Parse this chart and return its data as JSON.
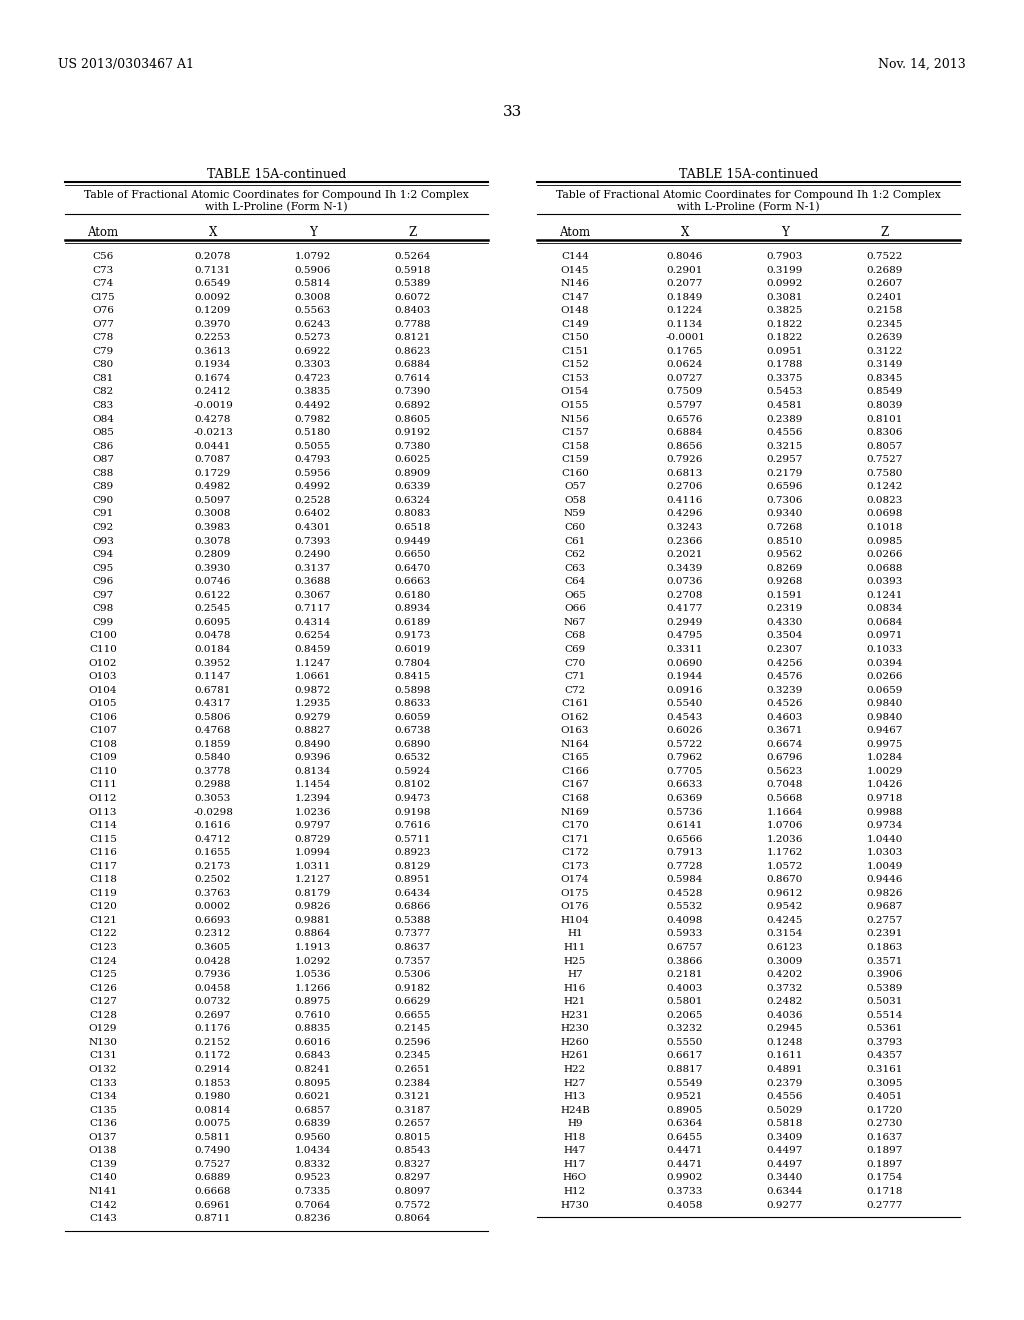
{
  "page_number": "33",
  "patent_left": "US 2013/0303467 A1",
  "patent_right": "Nov. 14, 2013",
  "table_title": "TABLE 15A-continued",
  "table_subtitle_line1": "Table of Fractional Atomic Coordinates for Compound Ih 1:2 Complex",
  "table_subtitle_line2": "with L-Proline (Form N-1)",
  "col_headers": [
    "Atom",
    "X",
    "Y",
    "Z"
  ],
  "left_data": [
    [
      "C56",
      "0.2078",
      "1.0792",
      "0.5264"
    ],
    [
      "C73",
      "0.7131",
      "0.5906",
      "0.5918"
    ],
    [
      "C74",
      "0.6549",
      "0.5814",
      "0.5389"
    ],
    [
      "Cl75",
      "0.0092",
      "0.3008",
      "0.6072"
    ],
    [
      "O76",
      "0.1209",
      "0.5563",
      "0.8403"
    ],
    [
      "O77",
      "0.3970",
      "0.6243",
      "0.7788"
    ],
    [
      "C78",
      "0.2253",
      "0.5273",
      "0.8121"
    ],
    [
      "C79",
      "0.3613",
      "0.6922",
      "0.8623"
    ],
    [
      "C80",
      "0.1934",
      "0.3303",
      "0.6884"
    ],
    [
      "C81",
      "0.1674",
      "0.4723",
      "0.7614"
    ],
    [
      "C82",
      "0.2412",
      "0.3835",
      "0.7390"
    ],
    [
      "C83",
      "-0.0019",
      "0.4492",
      "0.6892"
    ],
    [
      "O84",
      "0.4278",
      "0.7982",
      "0.8605"
    ],
    [
      "O85",
      "-0.0213",
      "0.5180",
      "0.9192"
    ],
    [
      "C86",
      "0.0441",
      "0.5055",
      "0.7380"
    ],
    [
      "O87",
      "0.7087",
      "0.4793",
      "0.6025"
    ],
    [
      "C88",
      "0.1729",
      "0.5956",
      "0.8909"
    ],
    [
      "C89",
      "0.4982",
      "0.4992",
      "0.6339"
    ],
    [
      "C90",
      "0.5097",
      "0.2528",
      "0.6324"
    ],
    [
      "C91",
      "0.3008",
      "0.6402",
      "0.8083"
    ],
    [
      "C92",
      "0.3983",
      "0.4301",
      "0.6518"
    ],
    [
      "O93",
      "0.3078",
      "0.7393",
      "0.9449"
    ],
    [
      "C94",
      "0.2809",
      "0.2490",
      "0.6650"
    ],
    [
      "C95",
      "0.3930",
      "0.3137",
      "0.6470"
    ],
    [
      "C96",
      "0.0746",
      "0.3688",
      "0.6663"
    ],
    [
      "C97",
      "0.6122",
      "0.3067",
      "0.6180"
    ],
    [
      "C98",
      "0.2545",
      "0.7117",
      "0.8934"
    ],
    [
      "C99",
      "0.6095",
      "0.4314",
      "0.6189"
    ],
    [
      "C100",
      "0.0478",
      "0.6254",
      "0.9173"
    ],
    [
      "C110",
      "0.0184",
      "0.8459",
      "0.6019"
    ],
    [
      "O102",
      "0.3952",
      "1.1247",
      "0.7804"
    ],
    [
      "O103",
      "0.1147",
      "1.0661",
      "0.8415"
    ],
    [
      "O104",
      "0.6781",
      "0.9872",
      "0.5898"
    ],
    [
      "O105",
      "0.4317",
      "1.2935",
      "0.8633"
    ],
    [
      "C106",
      "0.5806",
      "0.9279",
      "0.6059"
    ],
    [
      "C107",
      "0.4768",
      "0.8827",
      "0.6738"
    ],
    [
      "C108",
      "0.1859",
      "0.8490",
      "0.6890"
    ],
    [
      "C109",
      "0.5840",
      "0.9396",
      "0.6532"
    ],
    [
      "C110",
      "0.3778",
      "0.8134",
      "0.5924"
    ],
    [
      "C111",
      "0.2988",
      "1.1454",
      "0.8102"
    ],
    [
      "O112",
      "0.3053",
      "1.2394",
      "0.9473"
    ],
    [
      "O113",
      "-0.0298",
      "1.0236",
      "0.9198"
    ],
    [
      "C114",
      "0.1616",
      "0.9797",
      "0.7616"
    ],
    [
      "C115",
      "0.4712",
      "0.8729",
      "0.5711"
    ],
    [
      "C116",
      "0.1655",
      "1.0994",
      "0.8923"
    ],
    [
      "C117",
      "0.2173",
      "1.0311",
      "0.8129"
    ],
    [
      "C118",
      "0.2502",
      "1.2127",
      "0.8951"
    ],
    [
      "C119",
      "0.3763",
      "0.8179",
      "0.6434"
    ],
    [
      "C120",
      "0.0002",
      "0.9826",
      "0.6866"
    ],
    [
      "C121",
      "0.6693",
      "0.9881",
      "0.5388"
    ],
    [
      "C122",
      "0.2312",
      "0.8864",
      "0.7377"
    ],
    [
      "C123",
      "0.3605",
      "1.1913",
      "0.8637"
    ],
    [
      "C124",
      "0.0428",
      "1.0292",
      "0.7357"
    ],
    [
      "C125",
      "0.7936",
      "1.0536",
      "0.5306"
    ],
    [
      "C126",
      "0.0458",
      "1.1266",
      "0.9182"
    ],
    [
      "C127",
      "0.0732",
      "0.8975",
      "0.6629"
    ],
    [
      "C128",
      "0.2697",
      "0.7610",
      "0.6655"
    ],
    [
      "O129",
      "0.1176",
      "0.8835",
      "0.2145"
    ],
    [
      "N130",
      "0.2152",
      "0.6016",
      "0.2596"
    ],
    [
      "C131",
      "0.1172",
      "0.6843",
      "0.2345"
    ],
    [
      "O132",
      "0.2914",
      "0.8241",
      "0.2651"
    ],
    [
      "C133",
      "0.1853",
      "0.8095",
      "0.2384"
    ],
    [
      "C134",
      "0.1980",
      "0.6021",
      "0.3121"
    ],
    [
      "C135",
      "0.0814",
      "0.6857",
      "0.3187"
    ],
    [
      "C136",
      "0.0075",
      "0.6839",
      "0.2657"
    ],
    [
      "O137",
      "0.5811",
      "0.9560",
      "0.8015"
    ],
    [
      "O138",
      "0.7490",
      "1.0434",
      "0.8543"
    ],
    [
      "C139",
      "0.7527",
      "0.8332",
      "0.8327"
    ],
    [
      "C140",
      "0.6889",
      "0.9523",
      "0.8297"
    ],
    [
      "N141",
      "0.6668",
      "0.7335",
      "0.8097"
    ],
    [
      "C142",
      "0.6961",
      "0.7064",
      "0.7572"
    ],
    [
      "C143",
      "0.8711",
      "0.8236",
      "0.8064"
    ]
  ],
  "right_data": [
    [
      "C144",
      "0.8046",
      "0.7903",
      "0.7522"
    ],
    [
      "O145",
      "0.2901",
      "0.3199",
      "0.2689"
    ],
    [
      "N146",
      "0.2077",
      "0.0992",
      "0.2607"
    ],
    [
      "C147",
      "0.1849",
      "0.3081",
      "0.2401"
    ],
    [
      "O148",
      "0.1224",
      "0.3825",
      "0.2158"
    ],
    [
      "C149",
      "0.1134",
      "0.1822",
      "0.2345"
    ],
    [
      "C150",
      "-0.0001",
      "0.1822",
      "0.2639"
    ],
    [
      "C151",
      "0.1765",
      "0.0951",
      "0.3122"
    ],
    [
      "C152",
      "0.0624",
      "0.1788",
      "0.3149"
    ],
    [
      "C153",
      "0.0727",
      "0.3375",
      "0.8345"
    ],
    [
      "O154",
      "0.7509",
      "0.5453",
      "0.8549"
    ],
    [
      "O155",
      "0.5797",
      "0.4581",
      "0.8039"
    ],
    [
      "N156",
      "0.6576",
      "0.2389",
      "0.8101"
    ],
    [
      "C157",
      "0.6884",
      "0.4556",
      "0.8306"
    ],
    [
      "C158",
      "0.8656",
      "0.3215",
      "0.8057"
    ],
    [
      "C159",
      "0.7926",
      "0.2957",
      "0.7527"
    ],
    [
      "C160",
      "0.6813",
      "0.2179",
      "0.7580"
    ],
    [
      "O57",
      "0.2706",
      "0.6596",
      "0.1242"
    ],
    [
      "O58",
      "0.4116",
      "0.7306",
      "0.0823"
    ],
    [
      "N59",
      "0.4296",
      "0.9340",
      "0.0698"
    ],
    [
      "C60",
      "0.3243",
      "0.7268",
      "0.1018"
    ],
    [
      "C61",
      "0.2366",
      "0.8510",
      "0.0985"
    ],
    [
      "C62",
      "0.2021",
      "0.9562",
      "0.0266"
    ],
    [
      "C63",
      "0.3439",
      "0.8269",
      "0.0688"
    ],
    [
      "C64",
      "0.0736",
      "0.9268",
      "0.0393"
    ],
    [
      "O65",
      "0.2708",
      "0.1591",
      "0.1241"
    ],
    [
      "O66",
      "0.4177",
      "0.2319",
      "0.0834"
    ],
    [
      "N67",
      "0.2949",
      "0.4330",
      "0.0684"
    ],
    [
      "C68",
      "0.4795",
      "0.3504",
      "0.0971"
    ],
    [
      "C69",
      "0.3311",
      "0.2307",
      "0.1033"
    ],
    [
      "C70",
      "0.0690",
      "0.4256",
      "0.0394"
    ],
    [
      "C71",
      "0.1944",
      "0.4576",
      "0.0266"
    ],
    [
      "C72",
      "0.0916",
      "0.3239",
      "0.0659"
    ],
    [
      "C161",
      "0.5540",
      "0.4526",
      "0.9840"
    ],
    [
      "O162",
      "0.4543",
      "0.4603",
      "0.9840"
    ],
    [
      "O163",
      "0.6026",
      "0.3671",
      "0.9467"
    ],
    [
      "N164",
      "0.5722",
      "0.6674",
      "0.9975"
    ],
    [
      "C165",
      "0.7962",
      "0.6796",
      "1.0284"
    ],
    [
      "C166",
      "0.7705",
      "0.5623",
      "1.0029"
    ],
    [
      "C167",
      "0.6633",
      "0.7048",
      "1.0426"
    ],
    [
      "C168",
      "0.6369",
      "0.5668",
      "0.9718"
    ],
    [
      "N169",
      "0.5736",
      "1.1664",
      "0.9988"
    ],
    [
      "C170",
      "0.6141",
      "1.0706",
      "0.9734"
    ],
    [
      "C171",
      "0.6566",
      "1.2036",
      "1.0440"
    ],
    [
      "C172",
      "0.7913",
      "1.1762",
      "1.0303"
    ],
    [
      "C173",
      "0.7728",
      "1.0572",
      "1.0049"
    ],
    [
      "O174",
      "0.5984",
      "0.8670",
      "0.9446"
    ],
    [
      "O175",
      "0.4528",
      "0.9612",
      "0.9826"
    ],
    [
      "O176",
      "0.5532",
      "0.9542",
      "0.9687"
    ],
    [
      "H104",
      "0.4098",
      "0.4245",
      "0.2757"
    ],
    [
      "H1",
      "0.5933",
      "0.3154",
      "0.2391"
    ],
    [
      "H11",
      "0.6757",
      "0.6123",
      "0.1863"
    ],
    [
      "H25",
      "0.3866",
      "0.3009",
      "0.3571"
    ],
    [
      "H7",
      "0.2181",
      "0.4202",
      "0.3906"
    ],
    [
      "H16",
      "0.4003",
      "0.3732",
      "0.5389"
    ],
    [
      "H21",
      "0.5801",
      "0.2482",
      "0.5031"
    ],
    [
      "H231",
      "0.2065",
      "0.4036",
      "0.5514"
    ],
    [
      "H230",
      "0.3232",
      "0.2945",
      "0.5361"
    ],
    [
      "H260",
      "0.5550",
      "0.1248",
      "0.3793"
    ],
    [
      "H261",
      "0.6617",
      "0.1611",
      "0.4357"
    ],
    [
      "H22",
      "0.8817",
      "0.4891",
      "0.3161"
    ],
    [
      "H27",
      "0.5549",
      "0.2379",
      "0.3095"
    ],
    [
      "H13",
      "0.9521",
      "0.4556",
      "0.4051"
    ],
    [
      "H24B",
      "0.8905",
      "0.5029",
      "0.1720"
    ],
    [
      "H9",
      "0.6364",
      "0.5818",
      "0.2730"
    ],
    [
      "H18",
      "0.6455",
      "0.3409",
      "0.1637"
    ],
    [
      "H47",
      "0.4471",
      "0.4497",
      "0.1897"
    ],
    [
      "H17",
      "0.4471",
      "0.4497",
      "0.1897"
    ],
    [
      "H6O",
      "0.9902",
      "0.3440",
      "0.1754"
    ],
    [
      "H12",
      "0.3733",
      "0.6344",
      "0.1718"
    ],
    [
      "H730",
      "0.4058",
      "0.9277",
      "0.2777"
    ]
  ],
  "bg_color": "#ffffff",
  "text_color": "#000000"
}
